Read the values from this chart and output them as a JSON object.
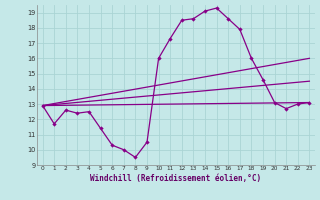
{
  "title": "",
  "xlabel": "Windchill (Refroidissement éolien,°C)",
  "xlim": [
    -0.5,
    23.5
  ],
  "ylim": [
    9,
    19.5
  ],
  "xticks": [
    0,
    1,
    2,
    3,
    4,
    5,
    6,
    7,
    8,
    9,
    10,
    11,
    12,
    13,
    14,
    15,
    16,
    17,
    18,
    19,
    20,
    21,
    22,
    23
  ],
  "yticks": [
    9,
    10,
    11,
    12,
    13,
    14,
    15,
    16,
    17,
    18,
    19
  ],
  "bg_color": "#c5e8e8",
  "line_color": "#880088",
  "grid_color": "#aad4d4",
  "lines": [
    {
      "x": [
        0,
        1,
        2,
        3,
        4,
        5,
        6,
        7,
        8,
        9,
        10,
        11,
        12,
        13,
        14,
        15,
        16,
        17,
        18,
        19,
        20,
        21,
        22,
        23
      ],
      "y": [
        12.9,
        11.7,
        12.6,
        12.4,
        12.5,
        11.4,
        10.3,
        10.0,
        9.5,
        10.5,
        16.0,
        17.3,
        18.5,
        18.6,
        19.1,
        19.3,
        18.6,
        17.9,
        16.0,
        14.6,
        13.1,
        12.7,
        13.0,
        13.1
      ],
      "marker": true
    },
    {
      "x": [
        0,
        23
      ],
      "y": [
        12.9,
        16.0
      ],
      "marker": false
    },
    {
      "x": [
        0,
        23
      ],
      "y": [
        12.9,
        14.5
      ],
      "marker": false
    },
    {
      "x": [
        0,
        23
      ],
      "y": [
        12.9,
        13.1
      ],
      "marker": false
    }
  ]
}
